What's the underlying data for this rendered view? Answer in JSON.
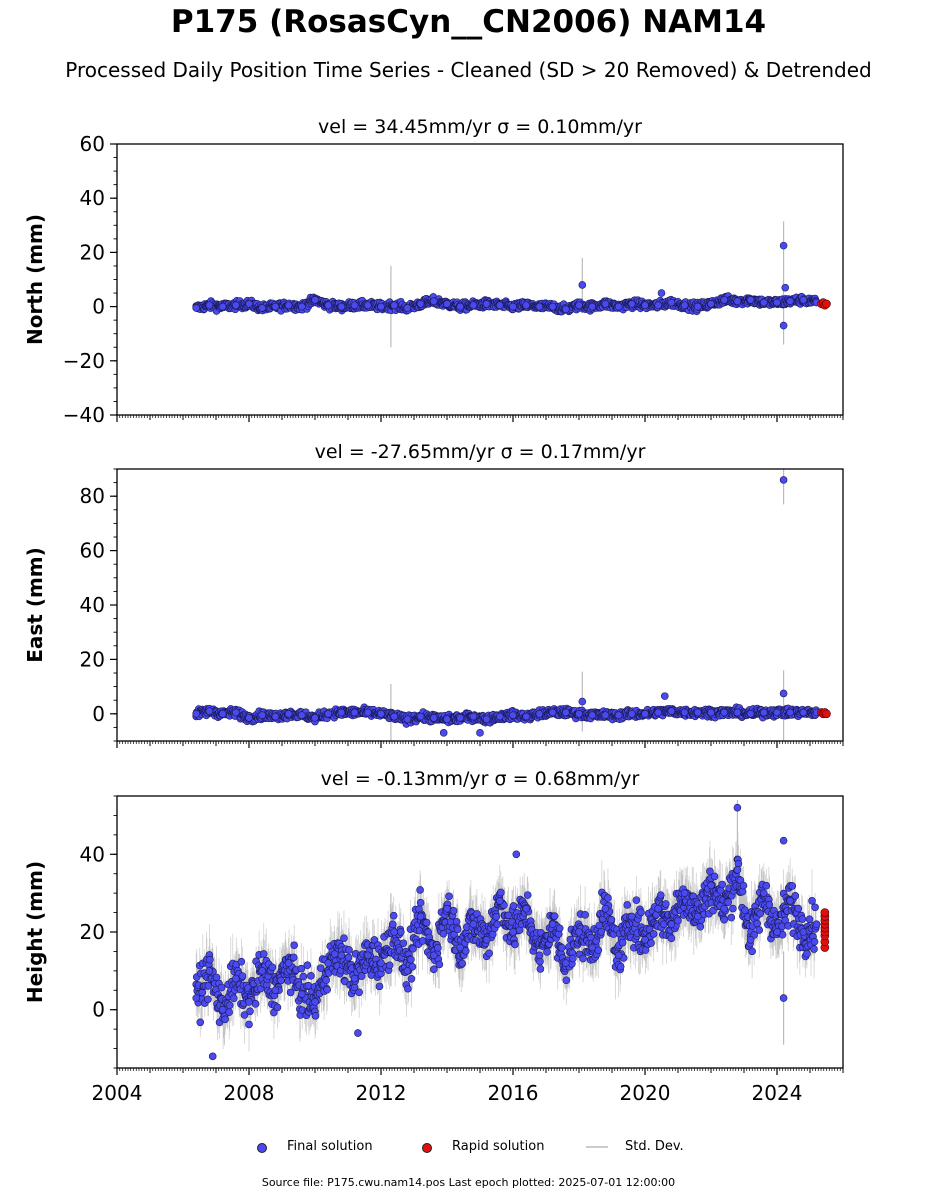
{
  "figure": {
    "title": "P175 (RosasCyn__CN2006) NAM14",
    "subtitle": "Processed Daily Position Time Series - Cleaned (SD > 20 Removed) & Detrended",
    "footer": "Source file: P175.cwu.nam14.pos  Last epoch plotted: 2025-07-01 12:00:00"
  },
  "legend": {
    "final_label": "Final solution",
    "rapid_label": "Rapid solution",
    "std_label": "Std. Dev."
  },
  "colors": {
    "final": "#4a4af0",
    "final_edge": "#1a1a55",
    "rapid": "#e01010",
    "std": "#bbbbbb"
  },
  "chart_data": [
    {
      "type": "scatter",
      "panel": "north",
      "title": "vel = 34.45mm/yr   σ = 0.10mm/yr",
      "ylabel": "North (mm)",
      "xlabel": "",
      "xlim": [
        2004.0,
        2026.0
      ],
      "ylim": [
        -40,
        60
      ],
      "yticks": [
        -40,
        -20,
        0,
        20,
        40,
        60
      ],
      "xticks": [
        2004,
        2008,
        2012,
        2016,
        2020,
        2024
      ],
      "show_xticklabels": false,
      "grid": false,
      "series": [
        {
          "name": "Final solution",
          "x": [
            2006.4,
            2006.8,
            2007.2,
            2007.6,
            2008.0,
            2008.4,
            2008.8,
            2009.2,
            2009.6,
            2010.0,
            2010.4,
            2010.8,
            2011.2,
            2011.6,
            2012.0,
            2012.4,
            2012.8,
            2013.2,
            2013.6,
            2014.0,
            2014.4,
            2014.8,
            2015.2,
            2015.6,
            2016.0,
            2016.4,
            2016.8,
            2017.2,
            2017.6,
            2018.0,
            2018.4,
            2018.8,
            2019.2,
            2019.6,
            2020.0,
            2020.4,
            2020.8,
            2021.2,
            2021.6,
            2022.0,
            2022.4,
            2022.8,
            2023.2,
            2023.6,
            2024.0,
            2024.4,
            2024.8,
            2025.2
          ],
          "y": [
            -0.5,
            0.5,
            0.0,
            0.5,
            1.0,
            -0.5,
            0.0,
            0.5,
            0.0,
            2.5,
            0.5,
            0.0,
            0.5,
            0.5,
            0.0,
            0.5,
            -0.5,
            1.0,
            2.0,
            1.0,
            0.0,
            0.5,
            1.0,
            0.5,
            0.0,
            0.5,
            0.0,
            0.0,
            -1.0,
            0.5,
            0.0,
            1.0,
            0.0,
            1.0,
            0.5,
            0.5,
            1.5,
            0.5,
            0.0,
            1.0,
            2.5,
            2.0,
            2.5,
            1.5,
            1.5,
            2.0,
            2.5,
            1.5
          ]
        },
        {
          "name": "Rapid solution",
          "x": [
            2025.35,
            2025.4,
            2025.45,
            2025.5
          ],
          "y": [
            1.0,
            1.5,
            0.5,
            1.0
          ]
        }
      ],
      "outliers": [
        {
          "x": 2018.1,
          "y": 8.0
        },
        {
          "x": 2024.2,
          "y": 22.5
        },
        {
          "x": 2024.2,
          "y": -7.0
        },
        {
          "x": 2024.25,
          "y": 7.0
        },
        {
          "x": 2020.5,
          "y": 5.0
        }
      ],
      "std_spikes": [
        {
          "x": 2012.3,
          "y": 0.0,
          "sd": 15
        },
        {
          "x": 2018.1,
          "y": 8.0,
          "sd": 10
        },
        {
          "x": 2024.2,
          "y": 22.5,
          "sd": 9
        },
        {
          "x": 2024.2,
          "y": 0.0,
          "sd": 14
        }
      ],
      "band_sd": 1.3
    },
    {
      "type": "scatter",
      "panel": "east",
      "title": "vel = -27.65mm/yr   σ = 0.17mm/yr",
      "ylabel": "East (mm)",
      "xlabel": "",
      "xlim": [
        2004.0,
        2026.0
      ],
      "ylim": [
        -10,
        90
      ],
      "yticks": [
        0,
        20,
        40,
        60,
        80
      ],
      "xticks": [
        2004,
        2008,
        2012,
        2016,
        2020,
        2024
      ],
      "show_xticklabels": false,
      "grid": false,
      "series": [
        {
          "name": "Final solution",
          "x": [
            2006.4,
            2006.8,
            2007.2,
            2007.6,
            2008.0,
            2008.4,
            2008.8,
            2009.2,
            2009.6,
            2010.0,
            2010.4,
            2010.8,
            2011.2,
            2011.6,
            2012.0,
            2012.4,
            2012.8,
            2013.2,
            2013.6,
            2014.0,
            2014.4,
            2014.8,
            2015.2,
            2015.6,
            2016.0,
            2016.4,
            2016.8,
            2017.2,
            2017.6,
            2018.0,
            2018.4,
            2018.8,
            2019.2,
            2019.6,
            2020.0,
            2020.4,
            2020.8,
            2021.2,
            2021.6,
            2022.0,
            2022.4,
            2022.8,
            2023.2,
            2023.6,
            2024.0,
            2024.4,
            2024.8,
            2025.2
          ],
          "y": [
            0.0,
            1.0,
            0.0,
            0.5,
            -1.5,
            -0.5,
            -1.0,
            0.0,
            -0.5,
            -1.5,
            0.0,
            0.5,
            0.5,
            0.5,
            0.0,
            -1.0,
            -2.0,
            -1.0,
            -1.5,
            -2.0,
            -1.5,
            -1.0,
            -2.0,
            -1.0,
            -0.5,
            -1.0,
            0.0,
            0.5,
            0.5,
            0.0,
            -0.5,
            -0.5,
            -0.5,
            0.0,
            0.0,
            0.5,
            1.0,
            0.5,
            0.5,
            0.5,
            0.5,
            0.5,
            0.0,
            0.5,
            0.5,
            0.5,
            0.5,
            0.5
          ]
        },
        {
          "name": "Rapid solution",
          "x": [
            2025.35,
            2025.4,
            2025.45,
            2025.5
          ],
          "y": [
            0.5,
            0.0,
            0.5,
            0.0
          ]
        }
      ],
      "outliers": [
        {
          "x": 2024.2,
          "y": 86.0
        },
        {
          "x": 2024.2,
          "y": 7.5
        },
        {
          "x": 2018.1,
          "y": 4.5
        },
        {
          "x": 2020.6,
          "y": 6.5
        },
        {
          "x": 2013.9,
          "y": -7.0
        },
        {
          "x": 2015.0,
          "y": -7.0
        }
      ],
      "std_spikes": [
        {
          "x": 2012.3,
          "y": 0.0,
          "sd": 11
        },
        {
          "x": 2018.1,
          "y": 4.5,
          "sd": 11
        },
        {
          "x": 2024.2,
          "y": 86.0,
          "sd": 9
        },
        {
          "x": 2024.2,
          "y": 2.0,
          "sd": 14
        }
      ],
      "band_sd": 1.3
    },
    {
      "type": "scatter",
      "panel": "height",
      "title": "vel = -0.13mm/yr   σ = 0.68mm/yr",
      "ylabel": "Height (mm)",
      "xlabel": "",
      "xlim": [
        2004.0,
        2026.0
      ],
      "ylim": [
        -15,
        55
      ],
      "yticks": [
        0,
        20,
        40
      ],
      "xticks": [
        2004,
        2008,
        2012,
        2016,
        2020,
        2024
      ],
      "show_xticklabels": true,
      "grid": false,
      "series": [
        {
          "name": "Final solution",
          "x": [
            2006.4,
            2006.8,
            2007.2,
            2007.6,
            2008.0,
            2008.4,
            2008.8,
            2009.2,
            2009.6,
            2010.0,
            2010.4,
            2010.8,
            2011.2,
            2011.6,
            2012.0,
            2012.4,
            2012.8,
            2013.2,
            2013.6,
            2014.0,
            2014.4,
            2014.8,
            2015.2,
            2015.6,
            2016.0,
            2016.4,
            2016.8,
            2017.2,
            2017.6,
            2018.0,
            2018.4,
            2018.8,
            2019.2,
            2019.6,
            2020.0,
            2020.4,
            2020.8,
            2021.2,
            2021.6,
            2022.0,
            2022.4,
            2022.8,
            2023.2,
            2023.6,
            2024.0,
            2024.4,
            2024.8,
            2025.2
          ],
          "y": [
            3.0,
            10.0,
            0.0,
            8.0,
            2.0,
            10.0,
            5.0,
            12.0,
            4.0,
            2.0,
            12.0,
            14.0,
            8.0,
            14.0,
            12.0,
            20.0,
            10.0,
            24.0,
            14.0,
            26.0,
            16.0,
            22.0,
            18.0,
            28.0,
            20.0,
            26.0,
            14.0,
            22.0,
            12.0,
            20.0,
            16.0,
            26.0,
            14.0,
            24.0,
            18.0,
            26.0,
            22.0,
            30.0,
            24.0,
            32.0,
            26.0,
            36.0,
            18.0,
            30.0,
            20.0,
            28.0,
            20.0,
            22.0
          ]
        },
        {
          "name": "Rapid solution",
          "x": [
            2025.45,
            2025.45,
            2025.45,
            2025.45,
            2025.45,
            2025.45,
            2025.45,
            2025.45,
            2025.45
          ],
          "y": [
            16.0,
            17.5,
            19.0,
            20.0,
            21.0,
            22.0,
            23.0,
            24.0,
            25.0
          ]
        }
      ],
      "outliers": [
        {
          "x": 2022.8,
          "y": 52.0
        },
        {
          "x": 2024.2,
          "y": 3.0
        },
        {
          "x": 2024.2,
          "y": 43.5
        },
        {
          "x": 2006.9,
          "y": -12.0
        },
        {
          "x": 2011.3,
          "y": -6.0
        },
        {
          "x": 2016.1,
          "y": 40.0
        }
      ],
      "std_spikes": [
        {
          "x": 2024.2,
          "y": 3.0,
          "sd": 12
        },
        {
          "x": 2012.3,
          "y": 18.0,
          "sd": 12
        },
        {
          "x": 2022.8,
          "y": 45.0,
          "sd": 9
        }
      ],
      "band_sd": 6,
      "scatter_sd": 4
    }
  ]
}
